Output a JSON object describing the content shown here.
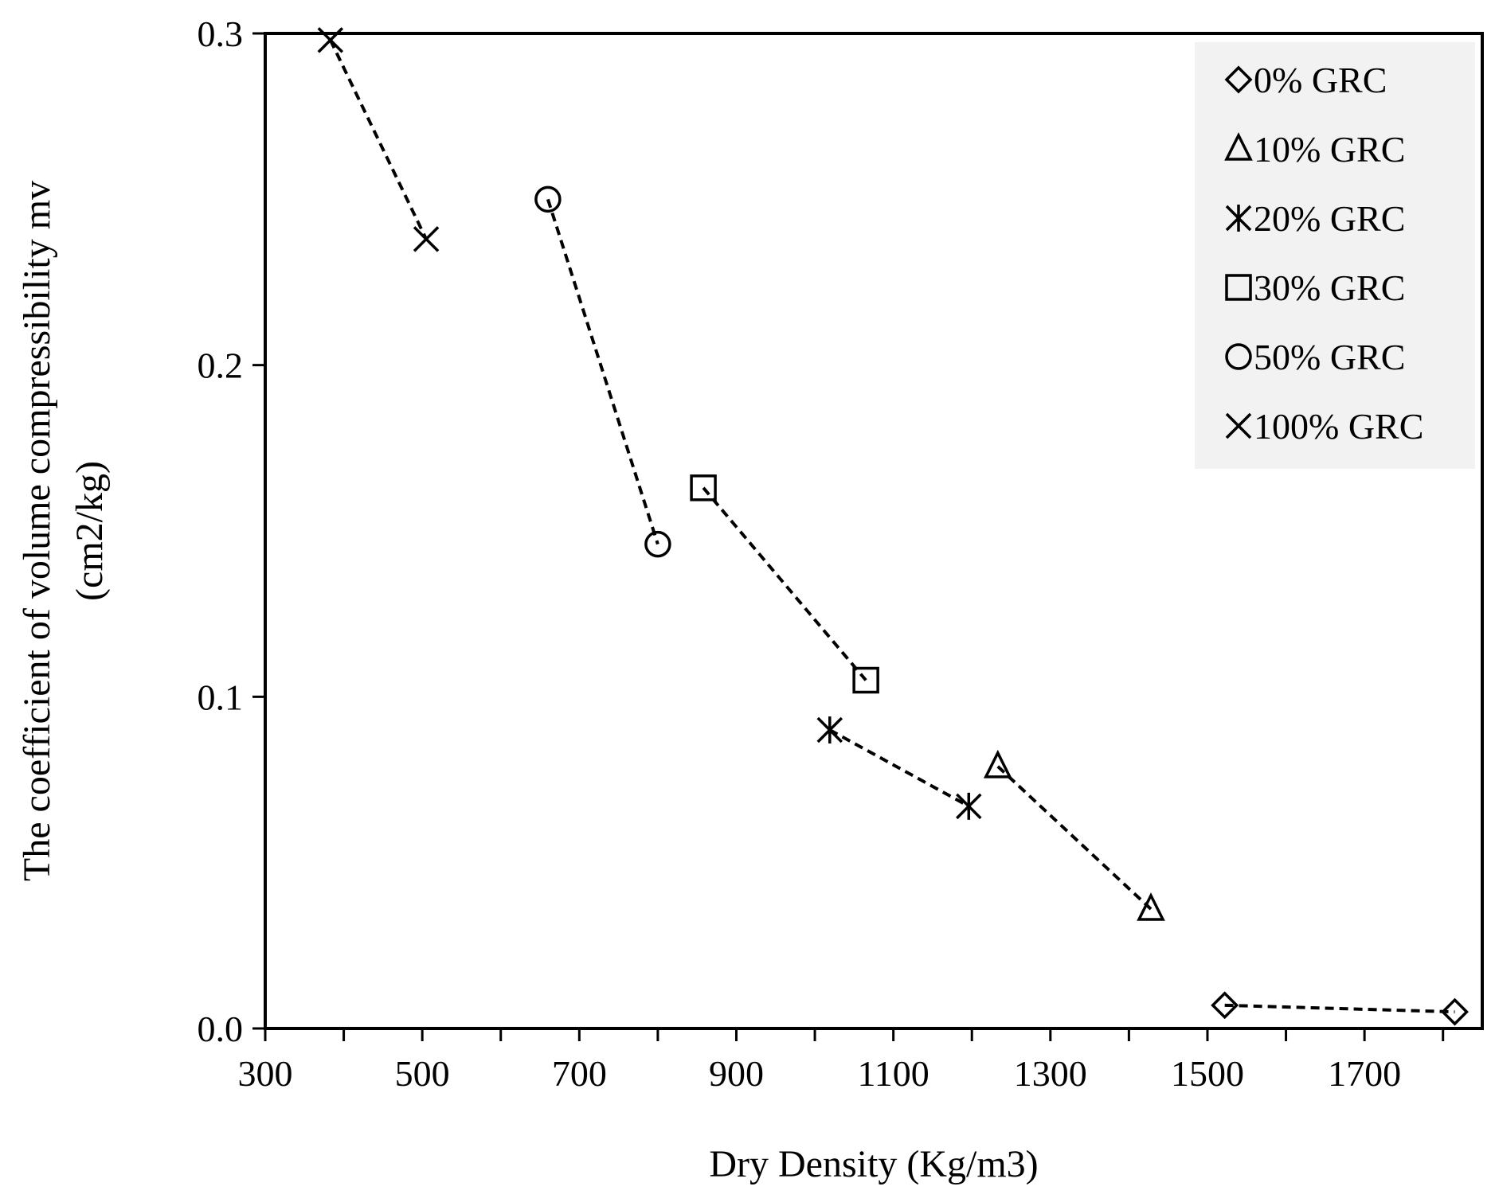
{
  "chart_data": {
    "type": "scatter",
    "xlabel": "Dry Density (Kg/m3)",
    "ylabel_line1": "The coefficient of volume compressibility mv",
    "ylabel_line2": "(cm2/kg)",
    "xlim": [
      300,
      1850
    ],
    "ylim": [
      0,
      0.3
    ],
    "xticks": [
      300,
      500,
      700,
      900,
      1100,
      1300,
      1500,
      1700
    ],
    "xtick_labels": [
      "300",
      "500",
      "700",
      "900",
      "1100",
      "1300",
      "1500",
      "1700"
    ],
    "yticks": [
      0,
      0.1,
      0.2,
      0.3
    ],
    "ytick_labels": [
      "0.0",
      "0.1",
      "0.2",
      "0.3"
    ],
    "grid": false,
    "legend_position": "top-right",
    "line_style": "dashed",
    "color": "#000000",
    "series": [
      {
        "name": "0% GRC",
        "marker": "diamond",
        "x": [
          1522,
          1815
        ],
        "y": [
          0.007,
          0.005
        ]
      },
      {
        "name": "10% GRC",
        "marker": "triangle",
        "x": [
          1233,
          1428
        ],
        "y": [
          0.079,
          0.036
        ]
      },
      {
        "name": "20% GRC",
        "marker": "asterisk",
        "x": [
          1019,
          1196
        ],
        "y": [
          0.09,
          0.067
        ]
      },
      {
        "name": "30% GRC",
        "marker": "square",
        "x": [
          858,
          1065
        ],
        "y": [
          0.163,
          0.105
        ]
      },
      {
        "name": "50% GRC",
        "marker": "circle",
        "x": [
          660,
          800
        ],
        "y": [
          0.25,
          0.146
        ]
      },
      {
        "name": "100% GRC",
        "marker": "x",
        "x": [
          383,
          505
        ],
        "y": [
          0.298,
          0.238
        ]
      }
    ]
  }
}
